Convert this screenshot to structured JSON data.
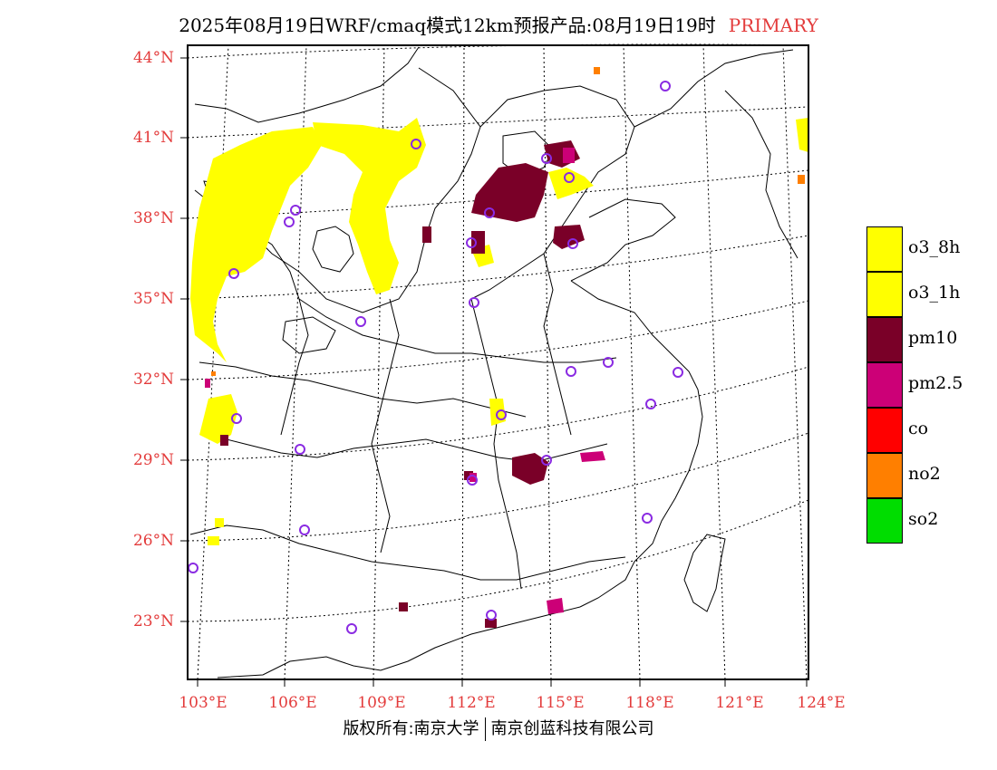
{
  "title": {
    "text": "2025年08月19日WRF/cmaq模式12km预报产品:08月19日19时",
    "tag": "PRIMARY"
  },
  "axes": {
    "lat_labels": [
      "44°N",
      "41°N",
      "38°N",
      "35°N",
      "32°N",
      "29°N",
      "26°N",
      "23°N"
    ],
    "lon_labels": [
      "103°E",
      "106°E",
      "109°E",
      "112°E",
      "115°E",
      "118°E",
      "121°E",
      "124°E"
    ]
  },
  "legend": [
    {
      "label": "o3_8h",
      "color": "#ffff00"
    },
    {
      "label": "o3_1h",
      "color": "#ffff00"
    },
    {
      "label": "pm10",
      "color": "#7a0028"
    },
    {
      "label": "pm2.5",
      "color": "#cc0077"
    },
    {
      "label": "co",
      "color": "#ff0000"
    },
    {
      "label": "no2",
      "color": "#ff7f00"
    },
    {
      "label": "so2",
      "color": "#00dd00"
    }
  ],
  "footer": {
    "left": "版权所有:南京大学",
    "right": "南京创蓝科技有限公司"
  },
  "colors": {
    "label_red": "#e33b3b",
    "station_marker": "#8a2be2"
  }
}
